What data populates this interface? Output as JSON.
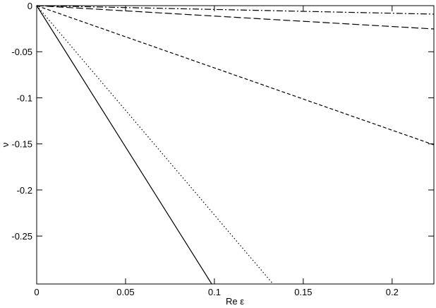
{
  "chart_data": {
    "type": "line",
    "x_label": "Re ε",
    "y_label": "ν",
    "xlim": [
      0,
      0.2235
    ],
    "ylim": [
      -0.302,
      0
    ],
    "xticks": [
      0,
      0.05,
      0.1,
      0.15,
      0.2
    ],
    "yticks": [
      0,
      -0.05,
      -0.1,
      -0.15,
      -0.2,
      -0.25
    ],
    "series": [
      {
        "color": "#000000",
        "style": "solid",
        "x": [
          0,
          0.0985
        ],
        "values": [
          0,
          -0.302
        ]
      },
      {
        "color": "#000000",
        "style": "dotted",
        "x": [
          0,
          0.133
        ],
        "values": [
          0,
          -0.302
        ]
      },
      {
        "color": "#000000",
        "style": "dashed",
        "x": [
          0,
          0.2235
        ],
        "values": [
          0,
          -0.151
        ]
      },
      {
        "color": "#000000",
        "style": "long-dashed",
        "x": [
          0,
          0.2235
        ],
        "values": [
          0,
          -0.0253
        ]
      },
      {
        "color": "#000000",
        "style": "dash-dot",
        "x": [
          0,
          0.2235
        ],
        "values": [
          0,
          -0.0092
        ]
      }
    ]
  }
}
